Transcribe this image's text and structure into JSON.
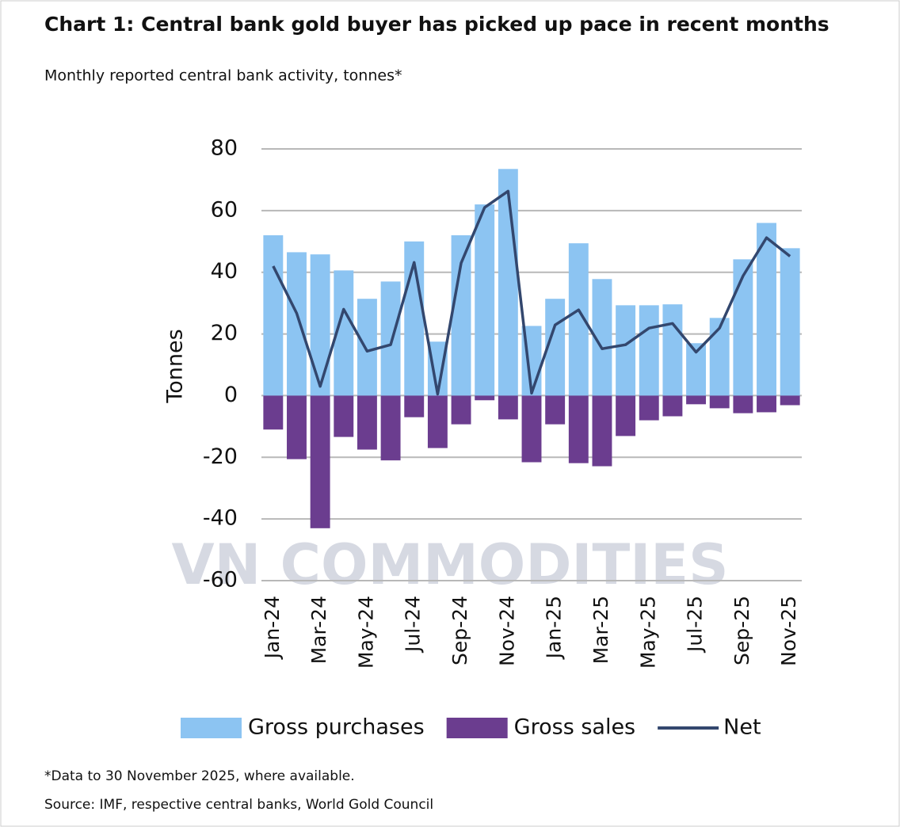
{
  "chart_data": {
    "type": "bar-line",
    "title": "Chart 1: Central bank gold buyer has picked up pace in recent months",
    "subtitle": "Monthly reported central bank activity, tonnes*",
    "y_label": "Tonnes",
    "footnote": "*Data to 30 November 2025, where available.",
    "source": "Source: IMF, respective central banks, World Gold Council",
    "watermark": "VN COMMODITIES",
    "categories": [
      "Jan-24",
      null,
      "Mar-24",
      null,
      "May-24",
      null,
      "Jul-24",
      null,
      "Sep-24",
      null,
      "Nov-24",
      null,
      "Jan-25",
      null,
      "Mar-25",
      null,
      "May-25",
      null,
      "Jul-25",
      null,
      "Sep-25",
      null,
      "Nov-25"
    ],
    "series": [
      {
        "name": "Gross purchases",
        "type": "bar",
        "color": "#8cc4f2",
        "values": [
          52,
          46.5,
          45.8,
          40.6,
          31.4,
          37,
          50,
          17.5,
          52,
          62,
          73.5,
          22.6,
          31.4,
          49.4,
          37.8,
          29.3,
          29.3,
          29.6,
          17,
          25.2,
          44.2,
          56,
          47.8
        ]
      },
      {
        "name": "Gross sales",
        "type": "bar",
        "color": "#6b3d8f",
        "values": [
          -11,
          -20.6,
          -43,
          -13.4,
          -17.5,
          -21,
          -7,
          -17,
          -9.3,
          -1.5,
          -7.7,
          -21.6,
          -9.3,
          -21.9,
          -22.9,
          -13.1,
          -8,
          -6.7,
          -2.8,
          -4.1,
          -5.7,
          -5.4,
          -3.1
        ]
      },
      {
        "name": "Net",
        "type": "line",
        "color": "#33476e",
        "values": [
          42,
          26.7,
          3,
          28,
          14.4,
          16.5,
          43.2,
          0.5,
          43,
          61,
          66.3,
          0.8,
          22.9,
          27.8,
          15.2,
          16.5,
          21.9,
          23.4,
          14.1,
          21.9,
          38.8,
          51.2,
          45.2
        ]
      }
    ],
    "ylim": [
      -60,
      80
    ],
    "yticks": [
      -60,
      -40,
      -20,
      0,
      20,
      40,
      60,
      80
    ],
    "grid": true,
    "legend": "bottom"
  }
}
